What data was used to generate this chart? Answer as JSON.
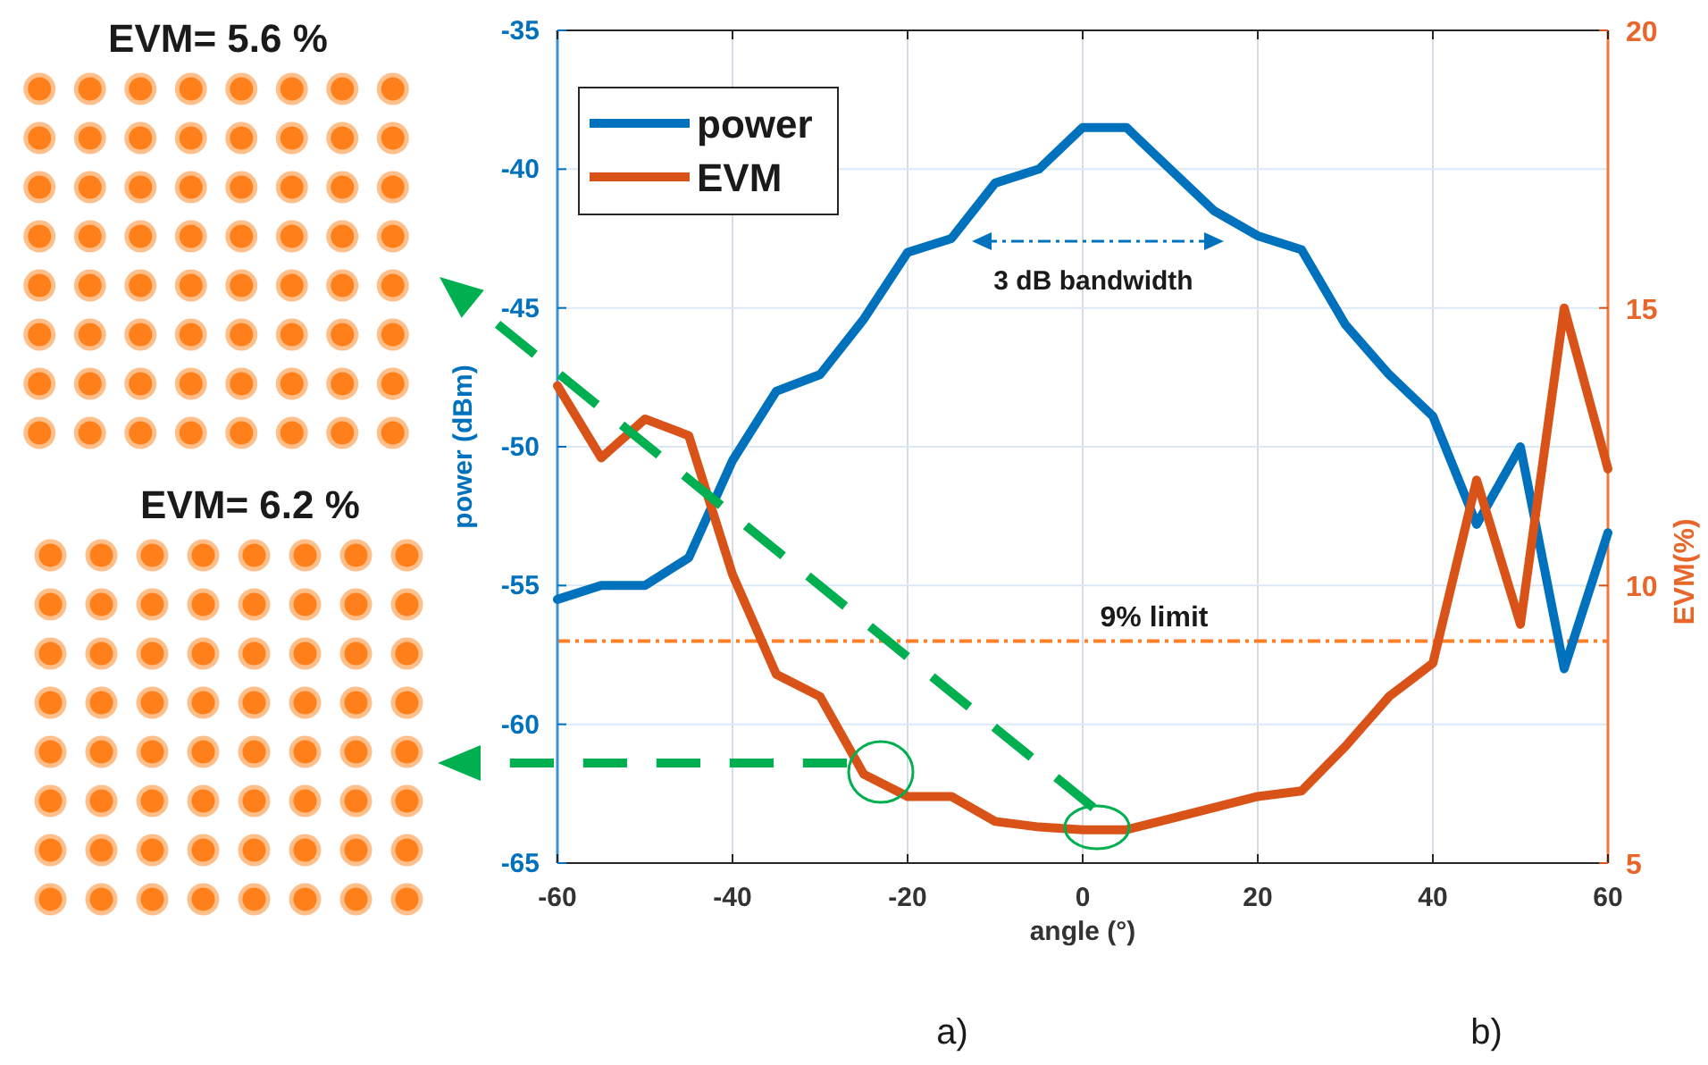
{
  "chart_data": {
    "type": "line",
    "xlabel": "angle (°)",
    "ylabel": "power (dBm)",
    "y2label": "EVM(%)",
    "x": [
      -60,
      -55,
      -50,
      -45,
      -40,
      -35,
      -30,
      -25,
      -20,
      -15,
      -10,
      -5,
      0,
      5,
      10,
      15,
      20,
      25,
      30,
      35,
      40,
      45,
      50,
      55,
      60
    ],
    "series": [
      {
        "name": "power",
        "color": "#0072bd",
        "values": [
          -55.5,
          -55,
          -55,
          -54,
          -50.5,
          -48,
          -47.4,
          -45.4,
          -43,
          -42.5,
          -40.5,
          -40,
          -38.5,
          -38.5,
          -40,
          -41.5,
          -42.4,
          -42.9,
          -45.6,
          -47.4,
          -48.9,
          -52.8,
          -50,
          -58,
          -53.1
        ]
      },
      {
        "name": "EVM",
        "color": "#d95319",
        "axis": "y2",
        "values": [
          13.6,
          12.3,
          13,
          12.7,
          10.2,
          8.4,
          8,
          6.6,
          6.2,
          6.2,
          5.75,
          5.65,
          5.6,
          5.6,
          5.8,
          6,
          6.2,
          6.3,
          7.1,
          8,
          8.6,
          11.9,
          9.3,
          15,
          12.1
        ]
      }
    ],
    "xlim": [
      -60,
      60
    ],
    "xticks": [
      -60,
      -40,
      -20,
      0,
      20,
      40,
      60
    ],
    "ylim": [
      -65,
      -35
    ],
    "yticks": [
      -65,
      -60,
      -55,
      -50,
      -45,
      -40,
      -35
    ],
    "y2lim": [
      5,
      20
    ],
    "y2ticks": [
      5,
      10,
      15,
      20
    ],
    "ref_lines": [
      {
        "axis": "y2",
        "value": 9,
        "label": "9% limit",
        "color": "#ff7f27",
        "line_style": "dashed"
      }
    ],
    "annotations": [
      "3 dB bandwidth",
      "EVM= 5.6 %",
      "EVM= 6.2 %",
      "a)",
      "b)"
    ],
    "grid": true,
    "legend": "top left",
    "line_style": "solid",
    "marker": "none"
  }
}
